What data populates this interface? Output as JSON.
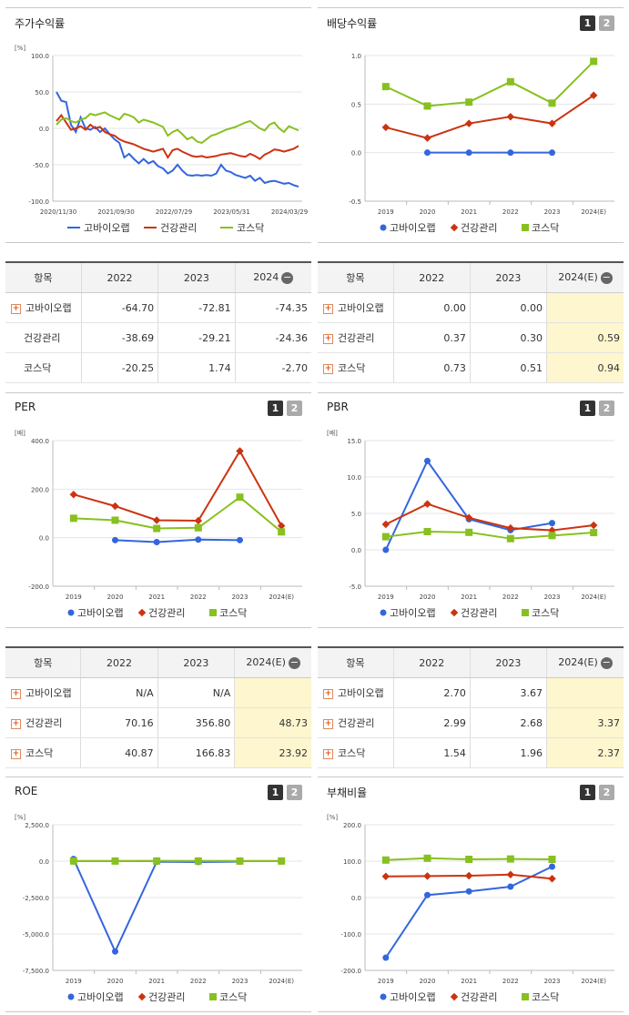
{
  "colors": {
    "series1": "#3366dd",
    "series2": "#cc3311",
    "series3": "#88c020"
  },
  "legend": [
    "고바이오랩",
    "건강관리",
    "코스닥"
  ],
  "chart_data": [
    {
      "id": "stock",
      "type": "line",
      "title": "주가수익률",
      "unit": "[%]",
      "ylim": [
        -100,
        100
      ],
      "yticks": [
        "100.0",
        "50.0",
        "0.0",
        "-50.0",
        "-100.0"
      ],
      "xlabels": [
        "2020/11/30",
        "2021/09/30",
        "2022/07/29",
        "2023/05/31",
        "2024/03/29"
      ],
      "series": [
        {
          "name": "고바이오랩",
          "values": [
            50,
            38,
            36,
            5,
            -5,
            15,
            0,
            -2,
            2,
            -5,
            0,
            -8,
            -15,
            -20,
            -40,
            -35,
            -42,
            -48,
            -42,
            -48,
            -45,
            -52,
            -55,
            -62,
            -58,
            -50,
            -58,
            -64,
            -65,
            -64,
            -65,
            -64,
            -65,
            -62,
            -50,
            -58,
            -60,
            -64,
            -66,
            -68,
            -65,
            -72,
            -68,
            -75,
            -73,
            -72,
            -74,
            -76,
            -75,
            -78,
            -80
          ]
        },
        {
          "name": "건강관리",
          "values": [
            10,
            18,
            8,
            -2,
            0,
            3,
            -2,
            5,
            0,
            2,
            -5,
            -8,
            -10,
            -15,
            -18,
            -20,
            -22,
            -25,
            -28,
            -30,
            -32,
            -30,
            -28,
            -40,
            -30,
            -28,
            -32,
            -35,
            -38,
            -39,
            -38,
            -40,
            -39,
            -38,
            -36,
            -35,
            -34,
            -36,
            -38,
            -39,
            -35,
            -38,
            -42,
            -36,
            -33,
            -29,
            -30,
            -32,
            -30,
            -28,
            -24
          ]
        },
        {
          "name": "코스닥",
          "values": [
            5,
            12,
            14,
            10,
            8,
            12,
            14,
            20,
            18,
            20,
            22,
            18,
            15,
            12,
            20,
            18,
            15,
            8,
            12,
            10,
            8,
            5,
            2,
            -10,
            -5,
            -2,
            -8,
            -15,
            -12,
            -18,
            -20,
            -15,
            -10,
            -8,
            -5,
            -2,
            0,
            2,
            5,
            8,
            10,
            5,
            0,
            -3,
            5,
            8,
            0,
            -5,
            3,
            0,
            -3
          ]
        }
      ]
    },
    {
      "id": "dividend",
      "type": "line",
      "title": "배당수익률",
      "unit": "",
      "ylim": [
        -0.5,
        1.0
      ],
      "yticks": [
        "1.0",
        "0.5",
        "0.0",
        "-0.5"
      ],
      "categories": [
        "2019",
        "2020",
        "2021",
        "2022",
        "2023",
        "2024(E)"
      ],
      "series": [
        {
          "name": "고바이오랩",
          "values": [
            null,
            0.0,
            0.0,
            0.0,
            0.0,
            null
          ]
        },
        {
          "name": "건강관리",
          "values": [
            0.26,
            0.15,
            0.3,
            0.37,
            0.3,
            0.59
          ]
        },
        {
          "name": "코스닥",
          "values": [
            0.68,
            0.48,
            0.52,
            0.73,
            0.51,
            0.94
          ]
        }
      ]
    },
    {
      "id": "per",
      "type": "line",
      "title": "PER",
      "unit": "[배]",
      "ylim": [
        -200,
        400
      ],
      "yticks": [
        "400.0",
        "200.0",
        "0.0",
        "-200.0"
      ],
      "categories": [
        "2019",
        "2020",
        "2021",
        "2022",
        "2023",
        "2024(E)"
      ],
      "series": [
        {
          "name": "고바이오랩",
          "values": [
            null,
            -10,
            -18,
            -8,
            -10,
            null
          ]
        },
        {
          "name": "건강관리",
          "values": [
            178,
            130,
            72,
            70.16,
            356.8,
            48.73
          ]
        },
        {
          "name": "코스닥",
          "values": [
            80,
            72,
            38,
            40.87,
            166.83,
            23.92
          ]
        }
      ]
    },
    {
      "id": "pbr",
      "type": "line",
      "title": "PBR",
      "unit": "[배]",
      "ylim": [
        -5,
        15
      ],
      "yticks": [
        "15.0",
        "10.0",
        "5.0",
        "0.0",
        "-5.0"
      ],
      "categories": [
        "2019",
        "2020",
        "2021",
        "2022",
        "2023",
        "2024(E)"
      ],
      "series": [
        {
          "name": "고바이오랩",
          "values": [
            0.0,
            12.2,
            4.2,
            2.7,
            3.67,
            null
          ]
        },
        {
          "name": "건강관리",
          "values": [
            3.5,
            6.3,
            4.4,
            2.99,
            2.68,
            3.37
          ]
        },
        {
          "name": "코스닥",
          "values": [
            1.8,
            2.5,
            2.4,
            1.54,
            1.96,
            2.37
          ]
        }
      ]
    },
    {
      "id": "roe",
      "type": "line",
      "title": "ROE",
      "unit": "[%]",
      "ylim": [
        -7500,
        2500
      ],
      "yticks": [
        "2,500.0",
        "0.0",
        "-2,500.0",
        "-5,000.0",
        "-7,500.0"
      ],
      "categories": [
        "2019",
        "2020",
        "2021",
        "2022",
        "2023",
        "2024(E)"
      ],
      "series": [
        {
          "name": "고바이오랩",
          "values": [
            150,
            -6200,
            -40,
            -60,
            -30,
            null
          ]
        },
        {
          "name": "건강관리",
          "values": [
            10,
            5,
            10,
            8,
            7,
            8
          ]
        },
        {
          "name": "코스닥",
          "values": [
            10,
            8,
            12,
            10,
            8,
            9
          ]
        }
      ]
    },
    {
      "id": "debt",
      "type": "line",
      "title": "부채비율",
      "unit": "[%]",
      "ylim": [
        -200,
        200
      ],
      "yticks": [
        "200.0",
        "100.0",
        "0.0",
        "-100.0",
        "-200.0"
      ],
      "categories": [
        "2019",
        "2020",
        "2021",
        "2022",
        "2023",
        "2024(E)"
      ],
      "series": [
        {
          "name": "고바이오랩",
          "values": [
            -165,
            7,
            17,
            30,
            85,
            null
          ]
        },
        {
          "name": "건강관리",
          "values": [
            58,
            59,
            60,
            63,
            52,
            null
          ]
        },
        {
          "name": "코스닥",
          "values": [
            103,
            108,
            105,
            106,
            105,
            null
          ]
        }
      ]
    }
  ],
  "tables": [
    {
      "id": "stock",
      "header": [
        "항목",
        "2022",
        "2023",
        "2024"
      ],
      "est": false,
      "rows": [
        {
          "name": "고바이오랩",
          "plus": true,
          "v": [
            "-64.70",
            "-72.81",
            "-74.35"
          ]
        },
        {
          "name": "건강관리",
          "plus": false,
          "v": [
            "-38.69",
            "-29.21",
            "-24.36"
          ]
        },
        {
          "name": "코스닥",
          "plus": false,
          "v": [
            "-20.25",
            "1.74",
            "-2.70"
          ]
        }
      ]
    },
    {
      "id": "dividend",
      "header": [
        "항목",
        "2022",
        "2023",
        "2024(E)"
      ],
      "est": true,
      "rows": [
        {
          "name": "고바이오랩",
          "plus": true,
          "v": [
            "0.00",
            "0.00",
            ""
          ]
        },
        {
          "name": "건강관리",
          "plus": true,
          "v": [
            "0.37",
            "0.30",
            "0.59"
          ]
        },
        {
          "name": "코스닥",
          "plus": true,
          "v": [
            "0.73",
            "0.51",
            "0.94"
          ]
        }
      ]
    },
    {
      "id": "per",
      "header": [
        "항목",
        "2022",
        "2023",
        "2024(E)"
      ],
      "est": true,
      "rows": [
        {
          "name": "고바이오랩",
          "plus": true,
          "v": [
            "N/A",
            "N/A",
            ""
          ]
        },
        {
          "name": "건강관리",
          "plus": true,
          "v": [
            "70.16",
            "356.80",
            "48.73"
          ]
        },
        {
          "name": "코스닥",
          "plus": true,
          "v": [
            "40.87",
            "166.83",
            "23.92"
          ]
        }
      ]
    },
    {
      "id": "pbr",
      "header": [
        "항목",
        "2022",
        "2023",
        "2024(E)"
      ],
      "est": true,
      "rows": [
        {
          "name": "고바이오랩",
          "plus": true,
          "v": [
            "2.70",
            "3.67",
            ""
          ]
        },
        {
          "name": "건강관리",
          "plus": true,
          "v": [
            "2.99",
            "2.68",
            "3.37"
          ]
        },
        {
          "name": "코스닥",
          "plus": true,
          "v": [
            "1.54",
            "1.96",
            "2.37"
          ]
        }
      ]
    }
  ],
  "pager": [
    "1",
    "2"
  ]
}
